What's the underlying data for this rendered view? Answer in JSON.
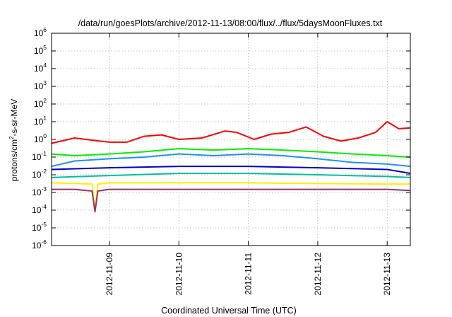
{
  "chart_data": {
    "type": "line",
    "title": "/data/run/goesPlots/archive/2012-11-13/08:00/flux/../flux/5daysMoonFluxes.txt",
    "xlabel": "Coordinated Universal Time (UTC)",
    "ylabel_parts": {
      "base": "protons/cm",
      "exp": "2",
      "rest": "-s-sr-MeV"
    },
    "x_axis": {
      "type": "date",
      "xlim": [
        "2012-11-08T04:00",
        "2012-11-13T08:00"
      ],
      "ticks": [
        "2012-11-09",
        "2012-11-10",
        "2012-11-11",
        "2012-11-12",
        "2012-11-13"
      ]
    },
    "y_axis": {
      "scale": "log",
      "ylim": [
        1e-06,
        1000000.0
      ],
      "tick_exponents": [
        -6,
        -5,
        -4,
        -3,
        -2,
        -1,
        0,
        1,
        2,
        3,
        4,
        5,
        6
      ],
      "tick_base": "10"
    },
    "grid": true,
    "legend": "none",
    "series": [
      {
        "color": "#ff0000",
        "x": [
          "2012-11-08T04:00",
          "2012-11-08T12:00",
          "2012-11-08T18:00",
          "2012-11-09T00:00",
          "2012-11-09T06:00",
          "2012-11-09T12:00",
          "2012-11-09T18:00",
          "2012-11-10T00:00",
          "2012-11-10T08:00",
          "2012-11-10T16:00",
          "2012-11-10T20:00",
          "2012-11-11T02:00",
          "2012-11-11T08:00",
          "2012-11-11T14:00",
          "2012-11-11T20:00",
          "2012-11-12T02:00",
          "2012-11-12T08:00",
          "2012-11-12T14:00",
          "2012-11-12T20:00",
          "2012-11-13T00:00",
          "2012-11-13T04:00",
          "2012-11-13T08:00"
        ],
        "values": [
          0.6,
          1.2,
          0.9,
          0.7,
          0.7,
          1.5,
          1.8,
          1.0,
          1.2,
          3.0,
          2.5,
          1.0,
          2.0,
          2.5,
          5.0,
          1.5,
          0.8,
          1.2,
          2.5,
          10,
          4.0,
          4.5
        ]
      },
      {
        "color": "#00ee00",
        "x": [
          "2012-11-08T04:00",
          "2012-11-08T12:00",
          "2012-11-09T00:00",
          "2012-11-09T12:00",
          "2012-11-10T00:00",
          "2012-11-10T12:00",
          "2012-11-11T00:00",
          "2012-11-11T12:00",
          "2012-11-12T00:00",
          "2012-11-12T12:00",
          "2012-11-13T00:00",
          "2012-11-13T08:00"
        ],
        "values": [
          0.15,
          0.12,
          0.15,
          0.2,
          0.3,
          0.25,
          0.3,
          0.25,
          0.2,
          0.15,
          0.12,
          0.1
        ]
      },
      {
        "color": "#1e90ff",
        "x": [
          "2012-11-08T04:00",
          "2012-11-08T12:00",
          "2012-11-09T00:00",
          "2012-11-09T12:00",
          "2012-11-10T00:00",
          "2012-11-10T12:00",
          "2012-11-11T00:00",
          "2012-11-11T12:00",
          "2012-11-12T00:00",
          "2012-11-12T12:00",
          "2012-11-13T00:00",
          "2012-11-13T08:00"
        ],
        "values": [
          0.03,
          0.06,
          0.08,
          0.1,
          0.15,
          0.12,
          0.15,
          0.12,
          0.08,
          0.05,
          0.04,
          0.03
        ]
      },
      {
        "color": "#0000cc",
        "x": [
          "2012-11-08T04:00",
          "2012-11-09T00:00",
          "2012-11-10T00:00",
          "2012-11-11T00:00",
          "2012-11-12T00:00",
          "2012-11-13T00:00",
          "2012-11-13T08:00"
        ],
        "values": [
          0.02,
          0.025,
          0.03,
          0.03,
          0.025,
          0.02,
          0.012
        ]
      },
      {
        "color": "#00c0a0",
        "x": [
          "2012-11-08T04:00",
          "2012-11-09T00:00",
          "2012-11-10T00:00",
          "2012-11-11T00:00",
          "2012-11-12T00:00",
          "2012-11-13T00:00",
          "2012-11-13T08:00"
        ],
        "values": [
          0.007,
          0.009,
          0.012,
          0.012,
          0.01,
          0.008,
          0.007
        ]
      },
      {
        "color": "#ffee00",
        "x": [
          "2012-11-08T04:00",
          "2012-11-08T18:00",
          "2012-11-08T19:00",
          "2012-11-08T20:00",
          "2012-11-09T00:00",
          "2012-11-10T00:00",
          "2012-11-11T00:00",
          "2012-11-12T00:00",
          "2012-11-13T00:00",
          "2012-11-13T08:00"
        ],
        "values": [
          0.0035,
          0.003,
          0.0001,
          0.003,
          0.0035,
          0.0035,
          0.0035,
          0.0032,
          0.003,
          0.003
        ]
      },
      {
        "color": "#993366",
        "x": [
          "2012-11-08T04:00",
          "2012-11-08T12:00",
          "2012-11-08T18:00",
          "2012-11-08T19:00",
          "2012-11-08T20:00",
          "2012-11-09T00:00",
          "2012-11-10T00:00",
          "2012-11-11T00:00",
          "2012-11-12T00:00",
          "2012-11-13T00:00",
          "2012-11-13T08:00"
        ],
        "values": [
          0.0015,
          0.0015,
          0.0012,
          8e-05,
          0.0012,
          0.0015,
          0.0015,
          0.0015,
          0.0015,
          0.0015,
          0.0013
        ]
      }
    ]
  }
}
